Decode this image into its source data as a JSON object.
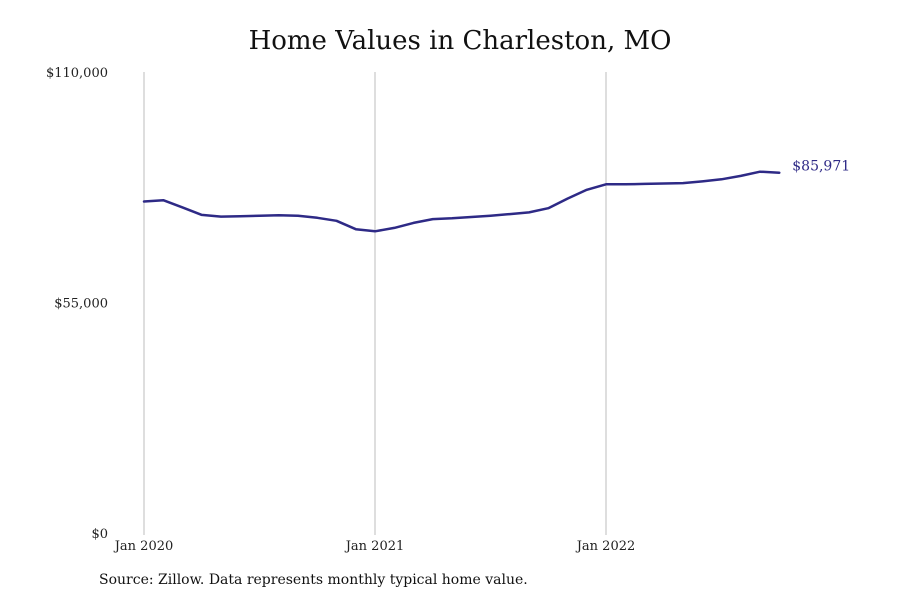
{
  "chart_data": {
    "type": "line",
    "title": "Home Values in Charleston, MO",
    "source": "Source: Zillow. Data represents monthly typical home value.",
    "ylim": [
      0,
      110000
    ],
    "y_ticks": [
      {
        "value": 0,
        "label": "$0"
      },
      {
        "value": 55000,
        "label": "$55,000"
      },
      {
        "value": 110000,
        "label": "$110,000"
      }
    ],
    "x_ticks": [
      {
        "value": "2020-01",
        "label": "Jan 2020"
      },
      {
        "value": "2021-01",
        "label": "Jan 2021"
      },
      {
        "value": "2022-01",
        "label": "Jan 2022"
      }
    ],
    "x_range": [
      "2020-01",
      "2022-12"
    ],
    "grid": "vertical lines at x ticks",
    "line_color": "#2e2a86",
    "grid_color": "#bdbdbd",
    "end_label": "$85,971",
    "series": [
      {
        "x": [
          "2020-01",
          "2020-02",
          "2020-03",
          "2020-04",
          "2020-05",
          "2020-06",
          "2020-07",
          "2020-08",
          "2020-09",
          "2020-10",
          "2020-11",
          "2020-12",
          "2021-01",
          "2021-02",
          "2021-03",
          "2021-04",
          "2021-05",
          "2021-06",
          "2021-07",
          "2021-08",
          "2021-09",
          "2021-10",
          "2021-11",
          "2021-12",
          "2022-01",
          "2022-02",
          "2022-03",
          "2022-04",
          "2022-05",
          "2022-06",
          "2022-07",
          "2022-08",
          "2022-09",
          "2022-10"
        ],
        "values": [
          79100,
          79400,
          77700,
          75900,
          75500,
          75600,
          75700,
          75800,
          75700,
          75200,
          74500,
          72500,
          72000,
          72800,
          74000,
          74900,
          75100,
          75400,
          75700,
          76100,
          76500,
          77500,
          79800,
          81900,
          83200,
          83200,
          83300,
          83400,
          83500,
          83900,
          84400,
          85200,
          86200,
          85971
        ]
      }
    ]
  }
}
